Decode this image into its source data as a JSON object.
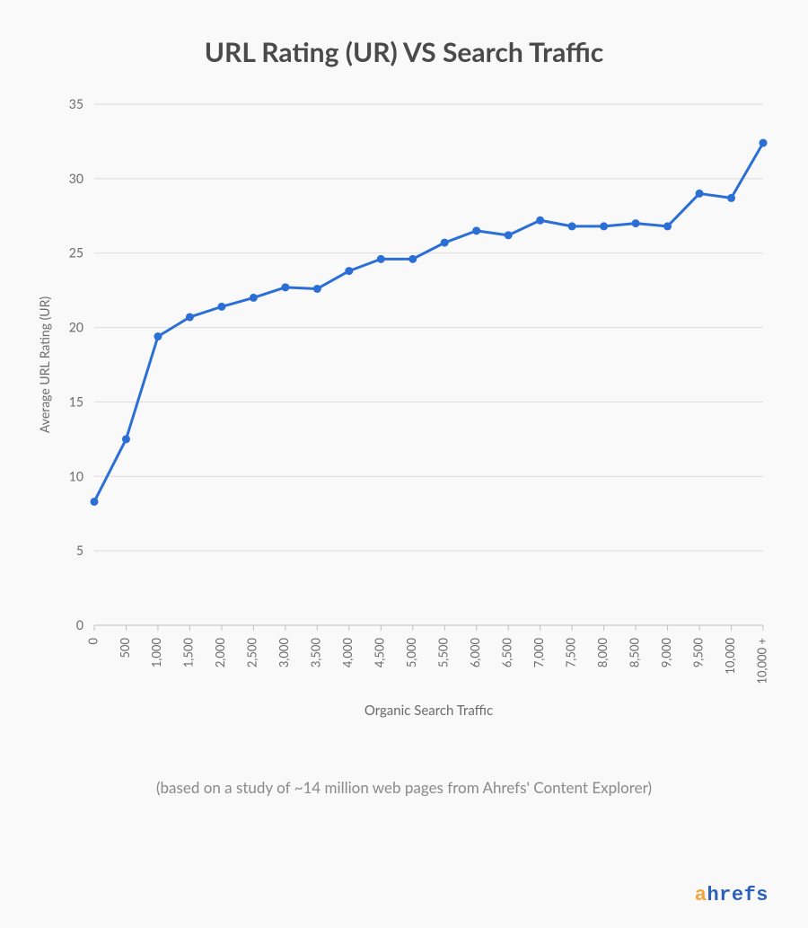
{
  "title": "URL Rating (UR) VS Search Traffic",
  "subtitle": "(based on a study of ~14 million web pages from Ahrefs' Content Explorer)",
  "brand": {
    "accent_char": "a",
    "rest": "hrefs",
    "accent_color": "#f2a33a",
    "main_color": "#2b5fb8"
  },
  "chart": {
    "type": "line",
    "background_color": "#f9f9f9",
    "grid_color": "#dcdcdc",
    "axis_color": "#bfbfbf",
    "line_color": "#2b6fd6",
    "marker_color": "#2b6fd6",
    "line_width": 3,
    "marker_radius": 4.5,
    "ylabel": "Average URL Rating (UR)",
    "xlabel": "Organic Search Traffic",
    "label_fontsize": 14,
    "tick_fontsize": 13,
    "ylim": [
      0,
      35
    ],
    "ytick_step": 5,
    "categories": [
      "0",
      "500",
      "1,000",
      "1,500",
      "2,000",
      "2,500",
      "3,000",
      "3,500",
      "4,000",
      "4,500",
      "5,000",
      "5,500",
      "6,000",
      "6,500",
      "7,000",
      "7,500",
      "8,000",
      "8,500",
      "9,000",
      "9,500",
      "10,000",
      "10,000 +"
    ],
    "values": [
      8.3,
      12.5,
      19.4,
      20.7,
      21.4,
      22.0,
      22.7,
      22.6,
      23.8,
      24.6,
      24.6,
      25.7,
      26.5,
      26.2,
      27.2,
      26.8,
      26.8,
      27.0,
      26.8,
      29.0,
      28.7,
      32.4
    ]
  }
}
